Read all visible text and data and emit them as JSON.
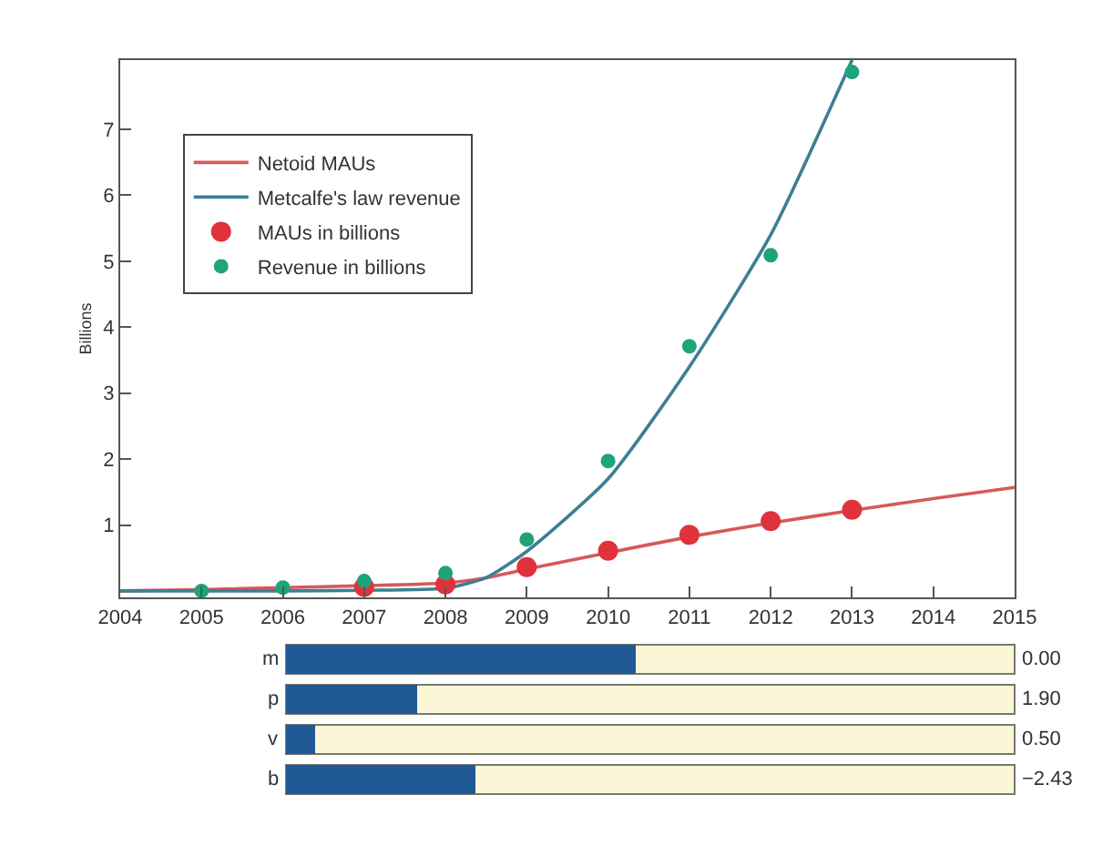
{
  "chart_data": [
    {
      "type": "line",
      "ylabel": "Billions",
      "xlim": [
        2004,
        2015
      ],
      "xticks": [
        2004,
        2005,
        2006,
        2007,
        2008,
        2009,
        2010,
        2011,
        2012,
        2013,
        2014,
        2015
      ],
      "ylim": [
        -0.1,
        8.05
      ],
      "yticks": [
        1,
        2,
        3,
        4,
        5,
        6,
        7
      ],
      "legend": "top left",
      "series": [
        {
          "name": "Netoid MAUs",
          "color": "#d8585a",
          "x": [
            2004,
            2005,
            2006,
            2007,
            2008,
            2008.5,
            2009,
            2010,
            2011,
            2012,
            2013,
            2014,
            2015
          ],
          "values": [
            0,
            0.02,
            0.05,
            0.08,
            0.12,
            0.2,
            0.33,
            0.58,
            0.82,
            1.03,
            1.22,
            1.4,
            1.57
          ]
        },
        {
          "name": "Metcalfe's law revenue",
          "color": "#3d7f93",
          "x": [
            2004,
            2005,
            2006,
            2007,
            2008,
            2008.5,
            2009,
            2010,
            2011,
            2012,
            2013
          ],
          "values": [
            0,
            0,
            0,
            0.01,
            0.04,
            0.2,
            0.6,
            1.7,
            3.4,
            5.4,
            8.05
          ]
        },
        {
          "name": "MAUs in billions",
          "type": "scatter",
          "marker": "circle",
          "color": "#e0323c",
          "x": [
            2007,
            2008,
            2009,
            2010,
            2011,
            2012,
            2013
          ],
          "values": [
            0.06,
            0.1,
            0.36,
            0.61,
            0.85,
            1.06,
            1.23
          ]
        },
        {
          "name": "Revenue in billions",
          "type": "scatter",
          "marker": "circle",
          "color": "#1fa37a",
          "x": [
            2005,
            2006,
            2007,
            2008,
            2009,
            2010,
            2011,
            2012,
            2013
          ],
          "values": [
            0.0,
            0.05,
            0.15,
            0.27,
            0.78,
            1.97,
            3.71,
            5.09,
            7.87
          ]
        }
      ]
    },
    {
      "type": "other",
      "categories": [
        "m",
        "p",
        "v",
        "b"
      ],
      "value_labels": [
        "0.00",
        "1.90",
        "0.50",
        "−2.43"
      ]
    }
  ]
}
